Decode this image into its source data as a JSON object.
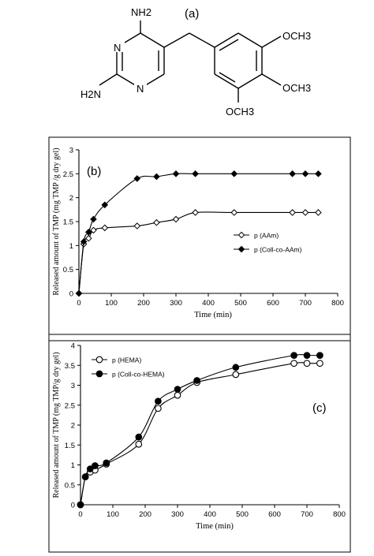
{
  "structure": {
    "label": "(a)",
    "atoms": {
      "nh2_top": "NH2",
      "nh2_left": "H2N",
      "n_upper": "N",
      "n_lower": "N",
      "och3_top": "OCH3",
      "och3_mid": "OCH3",
      "och3_bottom": "OCH3"
    }
  },
  "chart_data": [
    {
      "type": "line",
      "panel_label": "(b)",
      "xlabel": "Time (min)",
      "ylabel": "Released amount of TMP (mg TMP /g dry gel)",
      "xlim": [
        0,
        800
      ],
      "ylim": [
        0,
        3
      ],
      "xticks": [
        0,
        100,
        200,
        300,
        400,
        500,
        600,
        700,
        800
      ],
      "yticks": [
        0,
        0.5,
        1,
        1.5,
        2,
        2.5,
        3
      ],
      "ytick_labels": [
        "0",
        "0.5",
        "1",
        "1.5",
        "2",
        "2.5",
        "3"
      ],
      "grid": false,
      "legend_position": "center-right",
      "series": [
        {
          "name": "p (AAm)",
          "marker": "open-diamond",
          "points": [
            [
              0,
              0
            ],
            [
              15,
              1.03
            ],
            [
              30,
              1.15
            ],
            [
              45,
              1.32
            ],
            [
              80,
              1.37
            ],
            [
              180,
              1.41
            ],
            [
              240,
              1.48
            ],
            [
              300,
              1.55
            ],
            [
              360,
              1.69
            ],
            [
              480,
              1.69
            ],
            [
              660,
              1.69
            ],
            [
              700,
              1.69
            ],
            [
              740,
              1.69
            ]
          ]
        },
        {
          "name": "p (Coll-co-AAm)",
          "marker": "filled-diamond",
          "points": [
            [
              0,
              0
            ],
            [
              15,
              1.08
            ],
            [
              30,
              1.28
            ],
            [
              45,
              1.55
            ],
            [
              80,
              1.85
            ],
            [
              180,
              2.4
            ],
            [
              240,
              2.44
            ],
            [
              300,
              2.5
            ],
            [
              360,
              2.5
            ],
            [
              480,
              2.5
            ],
            [
              660,
              2.5
            ],
            [
              700,
              2.5
            ],
            [
              740,
              2.5
            ]
          ]
        }
      ]
    },
    {
      "type": "line",
      "panel_label": "(c)",
      "xlabel": "Time (min)",
      "ylabel": "Released amount of TMP (mg TMP/g dry gel)",
      "xlim": [
        0,
        800
      ],
      "ylim": [
        0,
        4
      ],
      "xticks": [
        0,
        100,
        200,
        300,
        400,
        500,
        600,
        700,
        800
      ],
      "yticks": [
        0,
        0.5,
        1,
        1.5,
        2,
        2.5,
        3,
        3.5,
        4
      ],
      "ytick_labels": [
        "0",
        "0.5",
        "1",
        "1.5",
        "2",
        "2.5",
        "3",
        "3.5",
        "4"
      ],
      "grid": false,
      "legend_position": "top-left",
      "series": [
        {
          "name": "p (HEMA)",
          "marker": "open-circle",
          "points": [
            [
              0,
              0
            ],
            [
              15,
              0.7
            ],
            [
              30,
              0.82
            ],
            [
              45,
              0.87
            ],
            [
              80,
              1.02
            ],
            [
              180,
              1.52
            ],
            [
              240,
              2.42
            ],
            [
              300,
              2.75
            ],
            [
              360,
              3.07
            ],
            [
              480,
              3.27
            ],
            [
              660,
              3.55
            ],
            [
              700,
              3.55
            ],
            [
              740,
              3.55
            ]
          ]
        },
        {
          "name": "p (Coll-co-HEMA)",
          "marker": "filled-circle",
          "points": [
            [
              0,
              0
            ],
            [
              15,
              0.7
            ],
            [
              30,
              0.9
            ],
            [
              45,
              0.98
            ],
            [
              80,
              1.05
            ],
            [
              180,
              1.7
            ],
            [
              240,
              2.6
            ],
            [
              300,
              2.9
            ],
            [
              360,
              3.12
            ],
            [
              480,
              3.45
            ],
            [
              660,
              3.75
            ],
            [
              700,
              3.75
            ],
            [
              740,
              3.75
            ]
          ]
        }
      ]
    }
  ]
}
